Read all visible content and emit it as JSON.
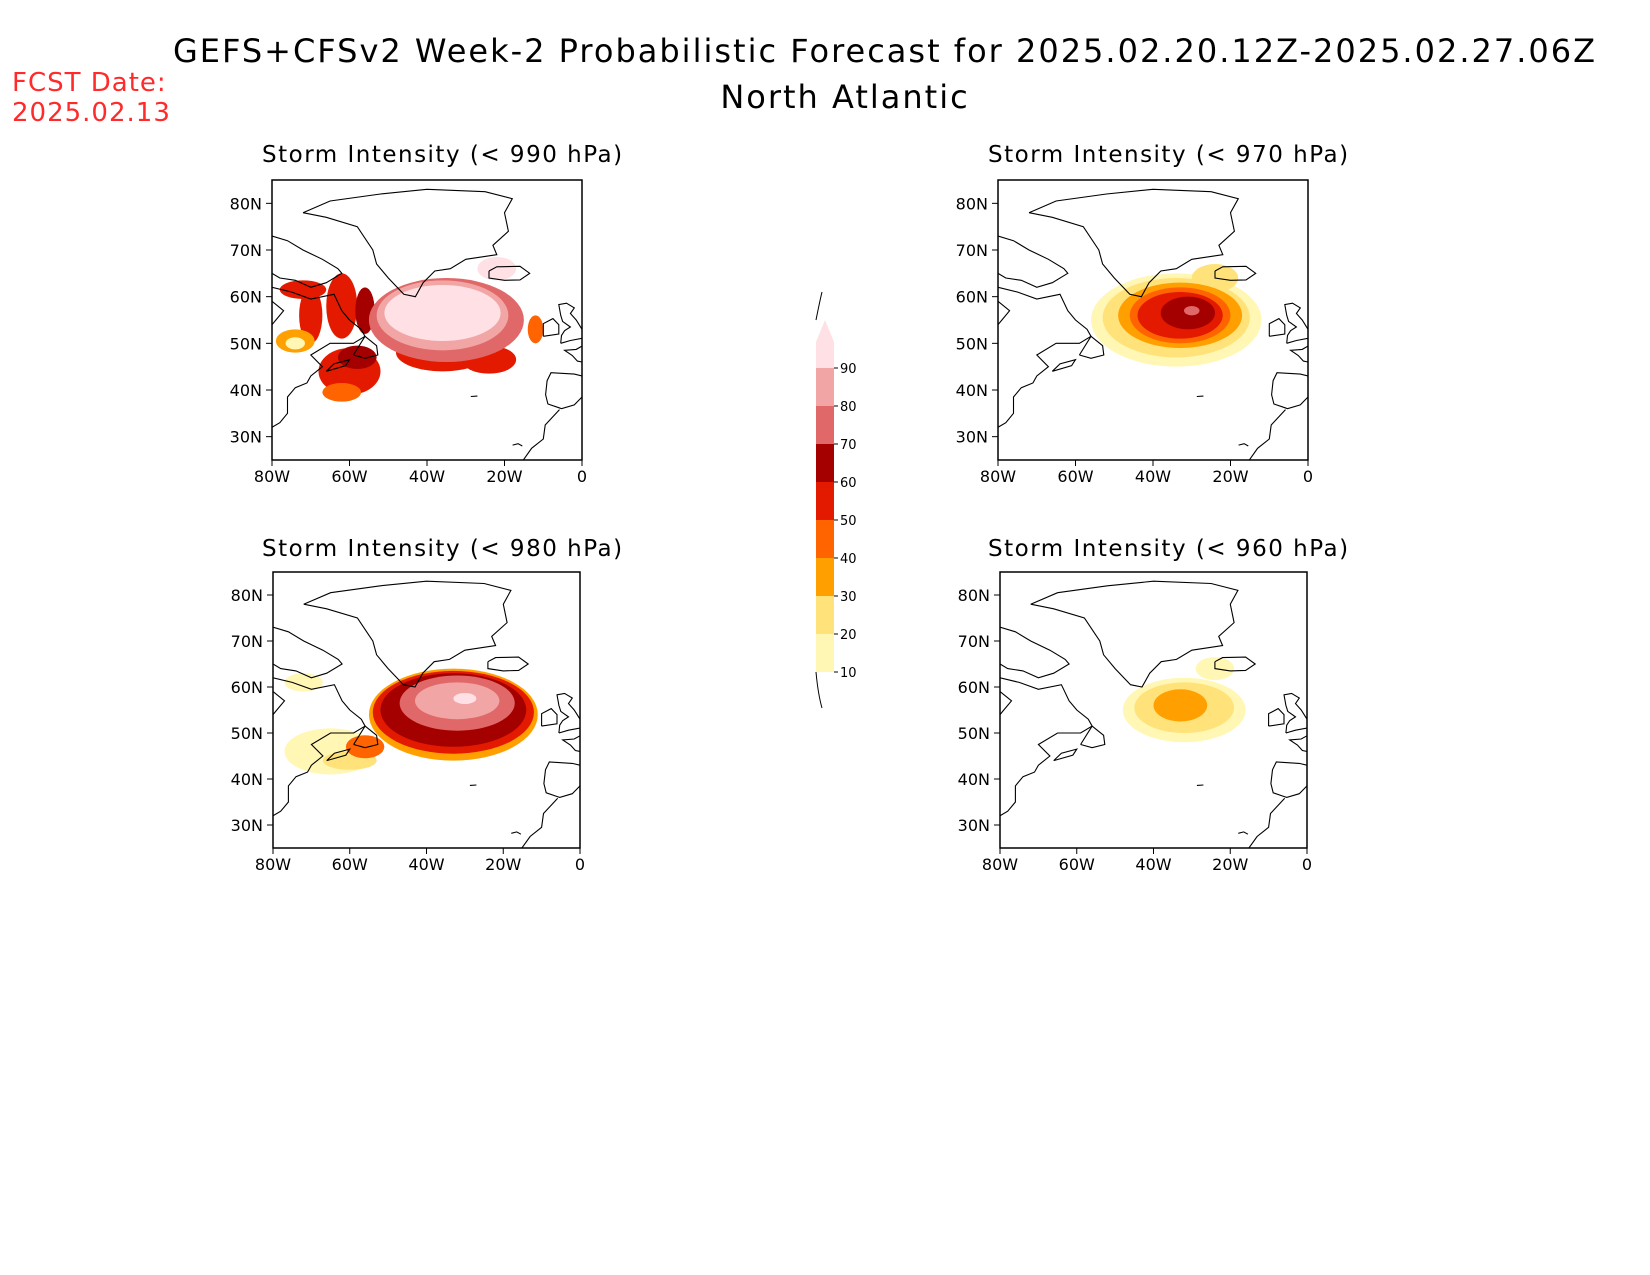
{
  "header": {
    "title": "GEFS+CFSv2 Week-2 Probabilistic Forecast for 2025.02.20.12Z-2025.02.27.06Z",
    "subtitle": "North Atlantic",
    "fcst_label": "FCST Date:",
    "fcst_date": "2025.02.13"
  },
  "axes": {
    "lat_labels": [
      "80N",
      "70N",
      "60N",
      "50N",
      "40N",
      "30N"
    ],
    "lon_labels": [
      "80W",
      "60W",
      "40W",
      "20W",
      "0"
    ],
    "lat_values": [
      80,
      70,
      60,
      50,
      40,
      30
    ],
    "lon_values": [
      -80,
      -60,
      -40,
      -20,
      0
    ],
    "lat_range": [
      25,
      85
    ],
    "lon_range": [
      -80,
      0
    ]
  },
  "colorbar": {
    "levels": [
      "10",
      "20",
      "30",
      "40",
      "50",
      "60",
      "70",
      "80",
      "90"
    ],
    "colors": [
      "#fff7b3",
      "#ffe27a",
      "#ffa000",
      "#ff6400",
      "#e31a00",
      "#a50000",
      "#e06868",
      "#f2a5a5",
      "#ffe0e4"
    ]
  },
  "panels": [
    {
      "id": "p990",
      "title": "Storm Intensity (< 990 hPa)",
      "blobs": [
        {
          "lon": -72,
          "lat": 61.5,
          "rx": 6,
          "ry": 2,
          "color": "#e31a00"
        },
        {
          "lon": -70,
          "lat": 56,
          "rx": 3,
          "ry": 6,
          "color": "#e31a00"
        },
        {
          "lon": -74,
          "lat": 50.5,
          "rx": 5,
          "ry": 2.5,
          "color": "#ffa000"
        },
        {
          "lon": -74,
          "lat": 50,
          "rx": 2.5,
          "ry": 1.3,
          "color": "#fff7b3"
        },
        {
          "lon": -62,
          "lat": 58,
          "rx": 4,
          "ry": 7,
          "color": "#e31a00"
        },
        {
          "lon": -56,
          "lat": 57,
          "rx": 2.5,
          "ry": 5,
          "color": "#a50000"
        },
        {
          "lon": -60,
          "lat": 44,
          "rx": 8,
          "ry": 5,
          "color": "#e31a00"
        },
        {
          "lon": -62,
          "lat": 39.5,
          "rx": 5,
          "ry": 2,
          "color": "#ff6400"
        },
        {
          "lon": -58,
          "lat": 47,
          "rx": 5,
          "ry": 2.5,
          "color": "#a50000"
        },
        {
          "lon": -36,
          "lat": 48,
          "rx": 12,
          "ry": 4,
          "color": "#e31a00"
        },
        {
          "lon": -24,
          "lat": 46.5,
          "rx": 7,
          "ry": 3,
          "color": "#e31a00"
        },
        {
          "lon": -12,
          "lat": 53,
          "rx": 2,
          "ry": 3,
          "color": "#ff6400"
        },
        {
          "lon": -35,
          "lat": 55,
          "rx": 20,
          "ry": 9,
          "color": "#e06868"
        },
        {
          "lon": -36,
          "lat": 56,
          "rx": 17,
          "ry": 7.5,
          "color": "#f2a5a5"
        },
        {
          "lon": -36,
          "lat": 56.5,
          "rx": 15,
          "ry": 6,
          "color": "#ffe0e4"
        },
        {
          "lon": -22,
          "lat": 66,
          "rx": 5,
          "ry": 2.5,
          "color": "#ffe0e4"
        }
      ]
    },
    {
      "id": "p970",
      "title": "Storm Intensity (< 970 hPa)",
      "blobs": [
        {
          "lon": -34,
          "lat": 55,
          "rx": 22,
          "ry": 10,
          "color": "#fff7b3"
        },
        {
          "lon": -24,
          "lat": 64,
          "rx": 6,
          "ry": 3,
          "color": "#ffe27a"
        },
        {
          "lon": -34,
          "lat": 55.5,
          "rx": 19,
          "ry": 8.5,
          "color": "#ffe27a"
        },
        {
          "lon": -33,
          "lat": 56,
          "rx": 16,
          "ry": 7,
          "color": "#ffa000"
        },
        {
          "lon": -33,
          "lat": 56,
          "rx": 13,
          "ry": 6,
          "color": "#ff6400"
        },
        {
          "lon": -33,
          "lat": 56,
          "rx": 11,
          "ry": 5,
          "color": "#e31a00"
        },
        {
          "lon": -31,
          "lat": 56.5,
          "rx": 7,
          "ry": 3.5,
          "color": "#a50000"
        },
        {
          "lon": -30,
          "lat": 57,
          "rx": 2,
          "ry": 1,
          "color": "#e06868"
        }
      ]
    },
    {
      "id": "p980",
      "title": "Storm Intensity (< 980 hPa)",
      "blobs": [
        {
          "lon": -72,
          "lat": 61,
          "rx": 5,
          "ry": 2,
          "color": "#fff7b3"
        },
        {
          "lon": -65,
          "lat": 46,
          "rx": 12,
          "ry": 5,
          "color": "#fff7b3"
        },
        {
          "lon": -60,
          "lat": 44,
          "rx": 7,
          "ry": 2,
          "color": "#ffe27a"
        },
        {
          "lon": -56,
          "lat": 47,
          "rx": 5,
          "ry": 2.5,
          "color": "#ff6400"
        },
        {
          "lon": -33,
          "lat": 54,
          "rx": 22,
          "ry": 10,
          "color": "#ffa000"
        },
        {
          "lon": -33,
          "lat": 54.5,
          "rx": 21,
          "ry": 9,
          "color": "#e31a00"
        },
        {
          "lon": -33,
          "lat": 55,
          "rx": 19,
          "ry": 8,
          "color": "#a50000"
        },
        {
          "lon": -32,
          "lat": 56.5,
          "rx": 15,
          "ry": 6,
          "color": "#e06868"
        },
        {
          "lon": -32,
          "lat": 57,
          "rx": 11,
          "ry": 4,
          "color": "#f2a5a5"
        },
        {
          "lon": -30,
          "lat": 57.5,
          "rx": 3,
          "ry": 1.2,
          "color": "#ffe0e4"
        }
      ]
    },
    {
      "id": "p960",
      "title": "Storm Intensity (< 960 hPa)",
      "blobs": [
        {
          "lon": -32,
          "lat": 55,
          "rx": 16,
          "ry": 7,
          "color": "#fff7b3"
        },
        {
          "lon": -24,
          "lat": 64,
          "rx": 5,
          "ry": 2.5,
          "color": "#fff7b3"
        },
        {
          "lon": -32,
          "lat": 55.5,
          "rx": 13,
          "ry": 5.5,
          "color": "#ffe27a"
        },
        {
          "lon": -33,
          "lat": 56,
          "rx": 7,
          "ry": 3.5,
          "color": "#ffa000"
        }
      ]
    }
  ]
}
